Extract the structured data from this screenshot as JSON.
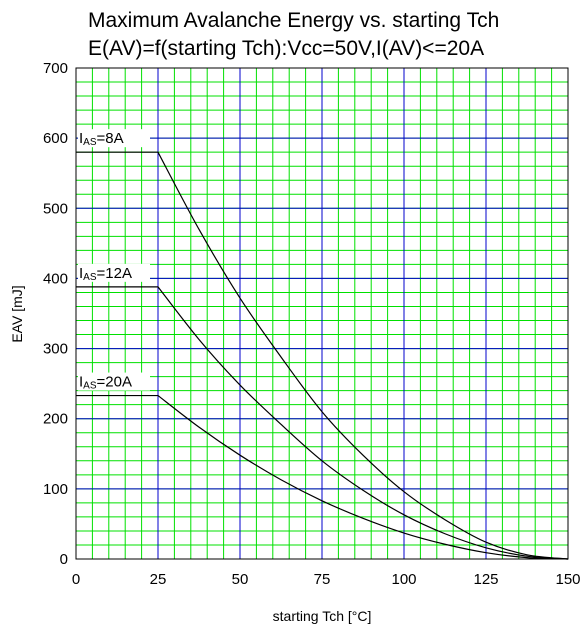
{
  "chart_data": {
    "type": "line",
    "title": "Maximum Avalanche Energy vs. starting Tch",
    "subtitle": "E(AV)=f(starting Tch):Vcc=50V,I(AV)<=20A",
    "xlabel": "starting Tch [°C]",
    "ylabel": "EAV [mJ]",
    "xlim": [
      0,
      150
    ],
    "ylim": [
      0,
      700
    ],
    "x_ticks": [
      0,
      25,
      50,
      75,
      100,
      125,
      150
    ],
    "y_ticks": [
      0,
      100,
      200,
      300,
      400,
      500,
      600,
      700
    ],
    "grid": true,
    "major_grid_color": "#0000cc",
    "minor_grid_color": "#00e000",
    "line_color": "#000000",
    "series": [
      {
        "name": "IAS=8A",
        "label_main": "I",
        "label_sub": "AS",
        "label_rest": "=8A",
        "x": [
          0,
          25,
          37.5,
          50,
          62.5,
          75,
          87.5,
          100,
          112.5,
          125,
          137.5,
          150
        ],
        "y": [
          580,
          580,
          470,
          372,
          288,
          210,
          148,
          96,
          56,
          24,
          6,
          0
        ]
      },
      {
        "name": "IAS=12A",
        "label_main": "I",
        "label_sub": "AS",
        "label_rest": "=12A",
        "x": [
          0,
          25,
          37.5,
          50,
          62.5,
          75,
          87.5,
          100,
          112.5,
          125,
          137.5,
          150
        ],
        "y": [
          388,
          388,
          313,
          248,
          192,
          140,
          98,
          63,
          36,
          16,
          4,
          0
        ]
      },
      {
        "name": "IAS=20A",
        "label_main": "I",
        "label_sub": "AS",
        "label_rest": "=20A",
        "x": [
          0,
          25,
          37.5,
          50,
          62.5,
          75,
          87.5,
          100,
          112.5,
          125,
          137.5,
          150
        ],
        "y": [
          233,
          233,
          188,
          148,
          113,
          83,
          58,
          37,
          21,
          9,
          2,
          0
        ]
      }
    ]
  }
}
